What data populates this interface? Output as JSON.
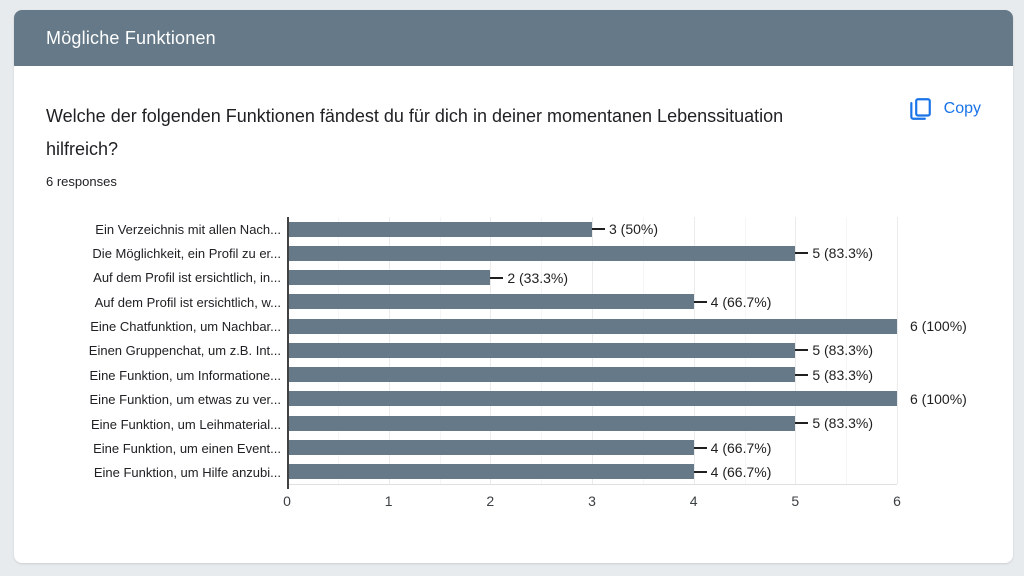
{
  "header": {
    "title": "Mögliche Funktionen"
  },
  "question": {
    "text": "Welche der folgenden Funktionen fändest du für dich in deiner momentanen Lebenssituation hilfreich?",
    "responses_label": "6 responses"
  },
  "copy": {
    "label": "Copy"
  },
  "colors": {
    "header_bg": "#657988",
    "bar": "#657988",
    "page_bg": "#e8ebee",
    "accent_blue": "#1a73e8",
    "grid_major": "#ebebeb",
    "grid_minor": "#f5f5f5",
    "zero_axis": "#424242"
  },
  "chart_data": {
    "type": "bar",
    "orientation": "horizontal",
    "title": "",
    "xlabel": "",
    "ylabel": "",
    "xlim": [
      0,
      6
    ],
    "x_ticks": [
      "0",
      "1",
      "2",
      "3",
      "4",
      "5",
      "6"
    ],
    "grid": true,
    "minor_grid_step": 0.5,
    "categories": [
      "Ein Verzeichnis mit allen Nach...",
      "Die Möglichkeit, ein Profil zu er...",
      "Auf dem Profil ist ersichtlich, in...",
      "Auf dem Profil ist ersichtlich, w...",
      "Eine Chatfunktion, um Nachbar...",
      "Einen Gruppenchat, um z.B. Int...",
      "Eine Funktion, um Informatione...",
      "Eine Funktion, um etwas zu ver...",
      "Eine Funktion, um Leihmaterial...",
      "Eine Funktion, um einen Event...",
      "Eine Funktion, um Hilfe anzubi..."
    ],
    "values": [
      3,
      5,
      2,
      4,
      6,
      5,
      5,
      6,
      5,
      4,
      4
    ],
    "value_labels": [
      "3 (50%)",
      "5 (83.3%)",
      "2 (33.3%)",
      "4 (66.7%)",
      "6 (100%)",
      "5 (83.3%)",
      "5 (83.3%)",
      "6 (100%)",
      "5 (83.3%)",
      "4 (66.7%)",
      "4 (66.7%)"
    ]
  }
}
